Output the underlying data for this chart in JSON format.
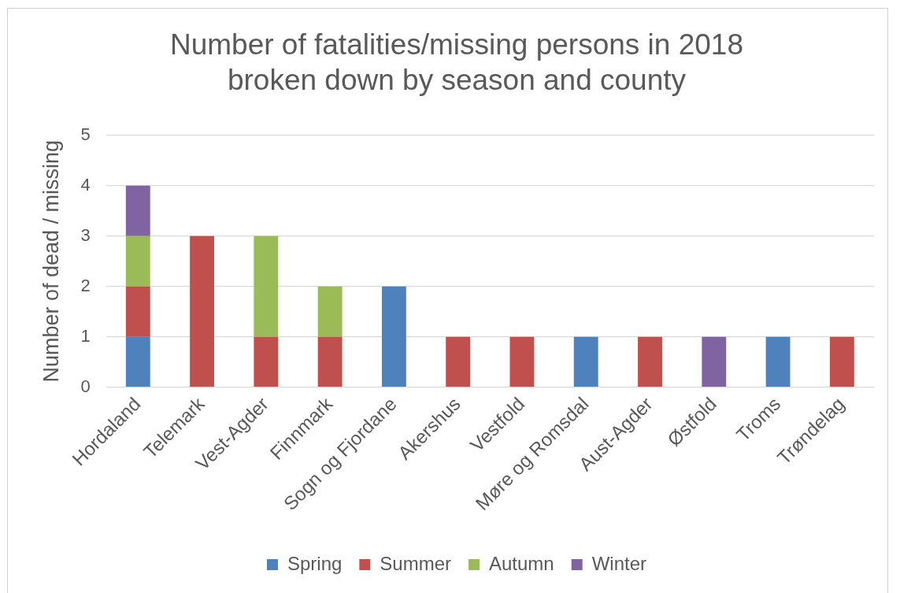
{
  "chart_data": {
    "type": "bar",
    "title": "Number of fatalities/missing persons in 2018 broken down by season and county",
    "ylabel": "Number of dead / missing",
    "categories": [
      "Hordaland",
      "Telemark",
      "Vest-Agder",
      "Finnmark",
      "Sogn og Fjordane",
      "Akershus",
      "Vestfold",
      "Møre og Romsdal",
      "Aust-Agder",
      "Østfold",
      "Troms",
      "Trøndelag"
    ],
    "series": [
      {
        "name": "Spring",
        "color": "#4f81bd",
        "values": [
          1,
          0,
          0,
          0,
          2,
          0,
          0,
          1,
          0,
          0,
          1,
          0
        ]
      },
      {
        "name": "Summer",
        "color": "#c0504d",
        "values": [
          1,
          3,
          1,
          1,
          0,
          1,
          1,
          0,
          1,
          0,
          0,
          1
        ]
      },
      {
        "name": "Autumn",
        "color": "#9bbb59",
        "values": [
          1,
          0,
          2,
          1,
          0,
          0,
          0,
          0,
          0,
          0,
          0,
          0
        ]
      },
      {
        "name": "Winter",
        "color": "#8064a2",
        "values": [
          1,
          0,
          0,
          0,
          0,
          0,
          0,
          0,
          0,
          1,
          0,
          0
        ]
      }
    ],
    "stacked": true,
    "ylim": [
      0,
      5
    ],
    "yticks": [
      0,
      1,
      2,
      3,
      4,
      5
    ],
    "grid": "y",
    "legend": "bottom"
  }
}
